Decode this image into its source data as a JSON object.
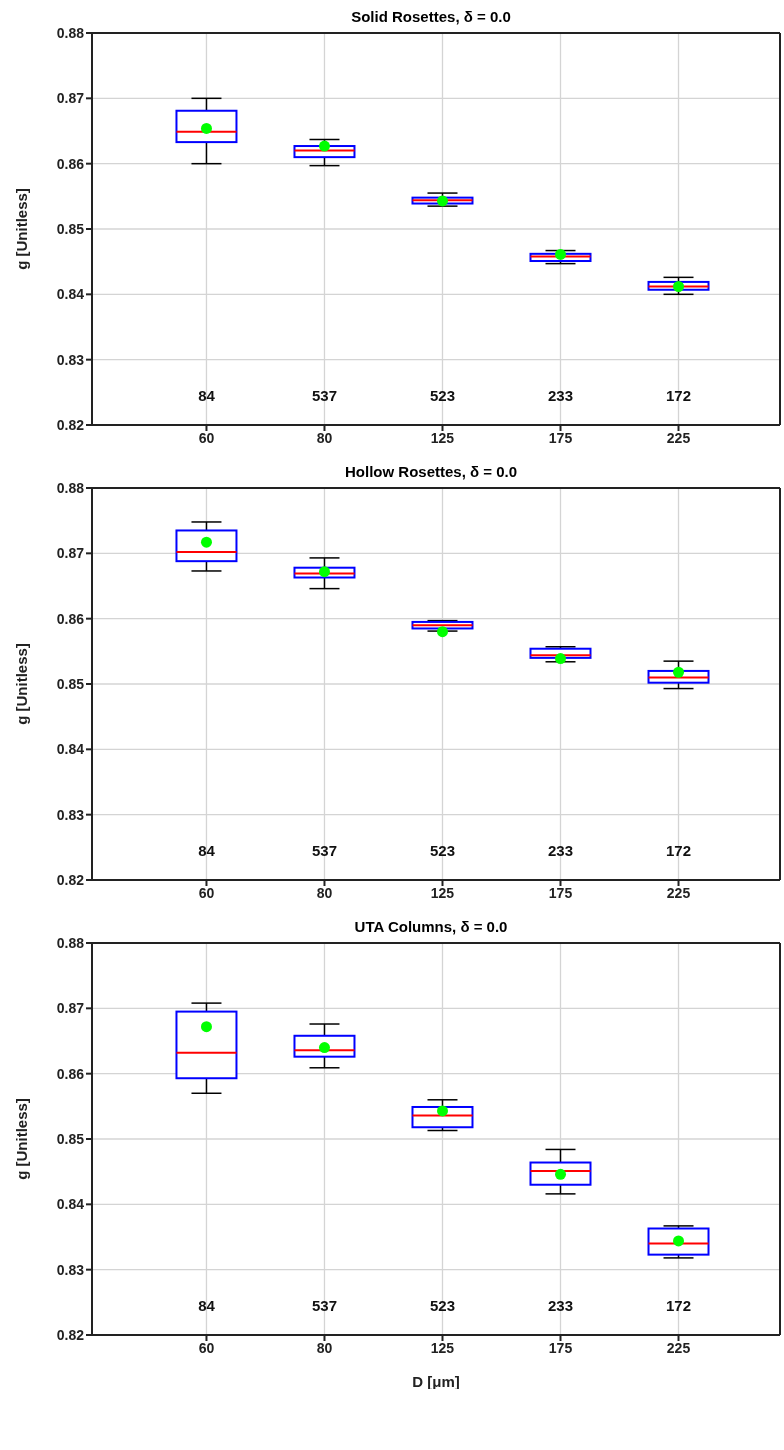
{
  "chart_data": [
    {
      "type": "box",
      "title": "Solid Rosettes, δ = 0.0",
      "ylabel": "g [Unitless]",
      "categories": [
        "60",
        "80",
        "125",
        "175",
        "225"
      ],
      "color": "#0000ff",
      "ylim": [
        0.82,
        0.88
      ],
      "yticks": [
        0.82,
        0.83,
        0.84,
        0.85,
        0.86,
        0.87,
        0.88
      ],
      "grid": true,
      "boxes": [
        {
          "low": 0.86,
          "q1": 0.8633,
          "median": 0.8649,
          "q3": 0.8681,
          "high": 0.87,
          "mean": 0.8654
        },
        {
          "low": 0.8597,
          "q1": 0.861,
          "median": 0.862,
          "q3": 0.8627,
          "high": 0.8637,
          "mean": 0.8627
        },
        {
          "low": 0.8535,
          "q1": 0.8539,
          "median": 0.8544,
          "q3": 0.8548,
          "high": 0.8555,
          "mean": 0.8543
        },
        {
          "low": 0.8447,
          "q1": 0.8451,
          "median": 0.8458,
          "q3": 0.8462,
          "high": 0.8467,
          "mean": 0.8461
        },
        {
          "low": 0.84,
          "q1": 0.8407,
          "median": 0.8412,
          "q3": 0.8419,
          "high": 0.8426,
          "mean": 0.8412
        }
      ],
      "annotations": [
        "84",
        "537",
        "523",
        "233",
        "172"
      ]
    },
    {
      "type": "box",
      "title": "Hollow Rosettes, δ = 0.0",
      "ylabel": "g [Unitless]",
      "categories": [
        "60",
        "80",
        "125",
        "175",
        "225"
      ],
      "color": "#0000ff",
      "ylim": [
        0.82,
        0.88
      ],
      "yticks": [
        0.82,
        0.83,
        0.84,
        0.85,
        0.86,
        0.87,
        0.88
      ],
      "grid": true,
      "boxes": [
        {
          "low": 0.8673,
          "q1": 0.8688,
          "median": 0.8702,
          "q3": 0.8735,
          "high": 0.8748,
          "mean": 0.8717
        },
        {
          "low": 0.8646,
          "q1": 0.8663,
          "median": 0.8669,
          "q3": 0.8678,
          "high": 0.8693,
          "mean": 0.8672
        },
        {
          "low": 0.8581,
          "q1": 0.8585,
          "median": 0.859,
          "q3": 0.8595,
          "high": 0.8597,
          "mean": 0.858
        },
        {
          "low": 0.8534,
          "q1": 0.854,
          "median": 0.8544,
          "q3": 0.8554,
          "high": 0.8557,
          "mean": 0.8539
        },
        {
          "low": 0.8493,
          "q1": 0.8502,
          "median": 0.851,
          "q3": 0.852,
          "high": 0.8535,
          "mean": 0.8518
        }
      ],
      "annotations": [
        "84",
        "537",
        "523",
        "233",
        "172"
      ]
    },
    {
      "type": "box",
      "title": "UTA Columns, δ = 0.0",
      "xlabel": "D [μm]",
      "ylabel": "g [Unitless]",
      "categories": [
        "60",
        "80",
        "125",
        "175",
        "225"
      ],
      "color": "#0000ff",
      "ylim": [
        0.82,
        0.88
      ],
      "yticks": [
        0.82,
        0.83,
        0.84,
        0.85,
        0.86,
        0.87,
        0.88
      ],
      "grid": true,
      "boxes": [
        {
          "low": 0.857,
          "q1": 0.8593,
          "median": 0.8632,
          "q3": 0.8695,
          "high": 0.8708,
          "mean": 0.8672
        },
        {
          "low": 0.8609,
          "q1": 0.8626,
          "median": 0.8636,
          "q3": 0.8658,
          "high": 0.8676,
          "mean": 0.864
        },
        {
          "low": 0.8513,
          "q1": 0.8518,
          "median": 0.8536,
          "q3": 0.8549,
          "high": 0.856,
          "mean": 0.8543
        },
        {
          "low": 0.8416,
          "q1": 0.843,
          "median": 0.8451,
          "q3": 0.8464,
          "high": 0.8484,
          "mean": 0.8446
        },
        {
          "low": 0.8318,
          "q1": 0.8323,
          "median": 0.834,
          "q3": 0.8363,
          "high": 0.8367,
          "mean": 0.8344
        }
      ],
      "annotations": [
        "84",
        "537",
        "523",
        "233",
        "172"
      ]
    }
  ]
}
